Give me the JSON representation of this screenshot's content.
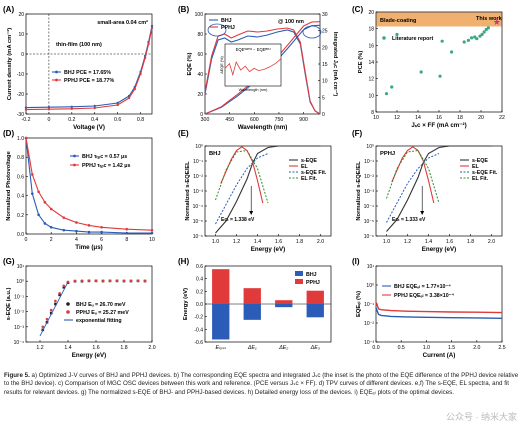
{
  "colors": {
    "bhj": "#2a5cb8",
    "pphj": "#e03a3a",
    "fit_green": "#2e8b2e",
    "gray": "#555555",
    "orange": "#f0b070"
  },
  "panels": [
    {
      "id": "A",
      "label": "(A)",
      "annotations": [
        "small-area  0.04 cm²",
        "thin-film (100 nm)"
      ],
      "legend": [
        "BHJ     PCE = 17.65%",
        "PPHJ    PCE = 18.77%"
      ],
      "chart_data": {
        "type": "line",
        "xlabel": "Voltage (V)",
        "ylabel": "Current density (mA cm⁻²)",
        "xlim": [
          -0.2,
          0.9
        ],
        "ylim": [
          -30,
          20
        ],
        "xticks": [
          -0.2,
          0.0,
          0.2,
          0.4,
          0.6,
          0.8
        ],
        "yticks": [
          -30,
          -20,
          -10,
          0,
          10,
          20
        ],
        "series": [
          {
            "name": "BHJ",
            "x": [
              -0.2,
              0,
              0.2,
              0.4,
              0.6,
              0.7,
              0.75,
              0.8,
              0.84,
              0.87,
              0.9
            ],
            "y": [
              -26.8,
              -26.6,
              -26.4,
              -26.0,
              -24.5,
              -21.0,
              -16.5,
              -9.0,
              -1.0,
              6.0,
              14.0
            ]
          },
          {
            "name": "PPHJ",
            "x": [
              -0.2,
              0,
              0.2,
              0.4,
              0.6,
              0.7,
              0.75,
              0.8,
              0.84,
              0.87,
              0.9
            ],
            "y": [
              -27.8,
              -27.6,
              -27.4,
              -27.0,
              -25.5,
              -22.0,
              -17.5,
              -10.0,
              -2.0,
              5.0,
              13.0
            ]
          }
        ]
      }
    },
    {
      "id": "B",
      "label": "(B)",
      "annotations": [
        "@ 100 nm",
        "EQEᵂᴾᴴᴶ − EQEᴮᴴᴶ"
      ],
      "legend": [
        "BHJ",
        "PPHJ"
      ],
      "inset": {
        "xlabel": "Wavelength (nm)",
        "ylabel": "ΔEQE (%)"
      },
      "chart_data": {
        "type": "line",
        "xlabel": "Wavelength (nm)",
        "ylabel": "EQE (%)",
        "y2label": "Integrated Jₛᴄ (mA cm⁻²)",
        "xlim": [
          300,
          1000
        ],
        "ylim": [
          0,
          100
        ],
        "y2lim": [
          0,
          30
        ],
        "xticks": [
          300,
          450,
          600,
          750,
          900
        ],
        "yticks": [
          0,
          20,
          40,
          60,
          80,
          100
        ],
        "y2ticks": [
          0,
          5,
          10,
          15,
          20,
          25,
          30
        ],
        "series": [
          {
            "name": "BHJ",
            "x": [
              300,
              340,
              380,
              420,
              460,
              500,
              560,
              620,
              680,
              740,
              800,
              840,
              880,
              910,
              940,
              970,
              1000
            ],
            "y": [
              20,
              55,
              74,
              76,
              72,
              74,
              78,
              77,
              79,
              82,
              84,
              82,
              70,
              40,
              12,
              3,
              0
            ]
          },
          {
            "name": "PPHJ",
            "x": [
              300,
              340,
              380,
              420,
              460,
              500,
              560,
              620,
              680,
              740,
              800,
              840,
              880,
              910,
              940,
              970,
              1000
            ],
            "y": [
              22,
              58,
              78,
              80,
              76,
              79,
              83,
              82,
              83,
              85,
              86,
              84,
              72,
              42,
              13,
              3,
              0
            ]
          },
          {
            "name": "BHJ integrated",
            "axis": "y2",
            "x": [
              300,
              400,
              500,
              600,
              700,
              800,
              900,
              950,
              1000
            ],
            "y": [
              0,
              2.0,
              5.5,
              9.5,
              14.0,
              19.5,
              25.3,
              26.5,
              26.6
            ]
          },
          {
            "name": "PPHJ integrated",
            "axis": "y2",
            "x": [
              300,
              400,
              500,
              600,
              700,
              800,
              900,
              950,
              1000
            ],
            "y": [
              0,
              2.2,
              6.0,
              10.0,
              14.8,
              20.5,
              26.4,
              27.6,
              27.7
            ]
          }
        ]
      }
    },
    {
      "id": "C",
      "label": "(C)",
      "annotations": [
        "Blade-coating",
        "This work"
      ],
      "legend": [
        "Literature report"
      ],
      "chart_data": {
        "type": "scatter",
        "xlabel": "Jₛᴄ × FF (mA cm⁻²)",
        "ylabel": "PCE (%)",
        "xlim": [
          10,
          22
        ],
        "ylim": [
          8,
          20
        ],
        "xticks": [
          10,
          12,
          14,
          16,
          18,
          20,
          22
        ],
        "yticks": [
          8,
          10,
          12,
          14,
          16,
          18,
          20
        ],
        "series": [
          {
            "name": "Literature report",
            "x": [
              11.0,
              11.5,
              12.0,
              14.3,
              16.1,
              16.3,
              17.2,
              18.4,
              18.8,
              19.1,
              19.4,
              19.6,
              19.9,
              20.1,
              20.3,
              20.5,
              20.7
            ],
            "y": [
              10.2,
              11.0,
              17.3,
              12.8,
              12.3,
              16.5,
              15.2,
              16.4,
              16.6,
              16.9,
              17.0,
              16.8,
              17.1,
              17.3,
              17.6,
              17.9,
              18.1
            ]
          },
          {
            "name": "This work",
            "x": [
              21.5
            ],
            "y": [
              18.8
            ]
          }
        ]
      }
    },
    {
      "id": "D",
      "label": "(D)",
      "legend": [
        "BHJ   τₜₚᴄ = 0.57 μs",
        "PPHJ  τₜₚᴄ = 1.42 μs"
      ],
      "chart_data": {
        "type": "line",
        "xlabel": "Time (μs)",
        "ylabel": "Normalized Photovoltage",
        "xlim": [
          0,
          10
        ],
        "ylim": [
          0,
          1
        ],
        "xticks": [
          0,
          2,
          4,
          6,
          8,
          10
        ],
        "yticks": [
          0,
          0.2,
          0.4,
          0.6,
          0.8,
          1.0
        ],
        "series": [
          {
            "name": "BHJ",
            "x": [
              0,
              0.5,
              1,
              1.5,
              2,
              3,
              4,
              5,
              6,
              8,
              10
            ],
            "y": [
              1.0,
              0.42,
              0.2,
              0.11,
              0.07,
              0.04,
              0.03,
              0.02,
              0.02,
              0.01,
              0.01
            ]
          },
          {
            "name": "PPHJ",
            "x": [
              0,
              0.5,
              1,
              1.5,
              2,
              3,
              4,
              5,
              6,
              8,
              10
            ],
            "y": [
              1.0,
              0.62,
              0.44,
              0.33,
              0.26,
              0.17,
              0.12,
              0.09,
              0.07,
              0.05,
              0.04
            ]
          }
        ]
      }
    },
    {
      "id": "E",
      "label": "(E)",
      "title": "BHJ",
      "legend": [
        "s-EQE",
        "EL",
        "s-EQE Fit.",
        "EL Fit."
      ],
      "annotations": [
        "Eᴄₜ = 1.338 eV"
      ],
      "chart_data": {
        "type": "line",
        "xlabel": "Energy (eV)",
        "ylabel": "Normalized s-EQE/EL",
        "xlim": [
          0.9,
          2.1
        ],
        "ylim_log": [
          -6,
          0
        ],
        "xticks": [
          1.0,
          1.2,
          1.4,
          1.6,
          1.8,
          2.0
        ],
        "yticks_log": [
          -6,
          -5,
          -4,
          -3,
          -2,
          -1,
          0
        ],
        "series": [
          {
            "name": "s-EQE",
            "x": [
              1.0,
              1.1,
              1.2,
              1.3,
              1.35,
              1.4,
              1.5,
              1.6,
              1.8,
              2.0
            ],
            "log10y": [
              -5.8,
              -5.0,
              -3.7,
              -2.2,
              -1.2,
              -0.5,
              -0.1,
              0,
              0,
              0
            ]
          },
          {
            "name": "EL",
            "x": [
              1.05,
              1.15,
              1.2,
              1.25,
              1.3,
              1.35,
              1.4,
              1.45
            ],
            "log10y": [
              -2.5,
              -0.9,
              -0.3,
              -0.05,
              -0.3,
              -1.0,
              -2.3,
              -3.8
            ]
          },
          {
            "name": "s-EQE Fit.",
            "x": [
              1.0,
              1.1,
              1.2,
              1.3,
              1.4,
              1.5
            ],
            "log10y": [
              -5.2,
              -3.9,
              -2.6,
              -1.5,
              -0.8,
              -0.5
            ]
          },
          {
            "name": "EL Fit.",
            "x": [
              1.0,
              1.1,
              1.2,
              1.3,
              1.4,
              1.5
            ],
            "log10y": [
              -3.6,
              -1.6,
              -0.4,
              -0.3,
              -1.5,
              -3.8
            ]
          }
        ]
      }
    },
    {
      "id": "F",
      "label": "(F)",
      "title": "PPHJ",
      "legend": [
        "s-EQE",
        "EL",
        "s-EQE Fit.",
        "EL Fit."
      ],
      "annotations": [
        "Eᴄₜ = 1.333 eV"
      ],
      "chart_data": {
        "type": "line",
        "xlabel": "Energy (eV)",
        "ylabel": "Normalized s-EQE/EL",
        "xlim": [
          0.9,
          2.1
        ],
        "ylim_log": [
          -6,
          0
        ],
        "xticks": [
          1.0,
          1.2,
          1.4,
          1.6,
          1.8,
          2.0
        ],
        "yticks_log": [
          -6,
          -5,
          -4,
          -3,
          -2,
          -1,
          0
        ],
        "series": [
          {
            "name": "s-EQE",
            "x": [
              1.0,
              1.1,
              1.2,
              1.3,
              1.35,
              1.4,
              1.5,
              1.6,
              1.8,
              2.0
            ],
            "log10y": [
              -5.7,
              -4.9,
              -3.6,
              -2.1,
              -1.1,
              -0.5,
              -0.1,
              0,
              0,
              0
            ]
          },
          {
            "name": "EL",
            "x": [
              1.05,
              1.15,
              1.2,
              1.25,
              1.3,
              1.35,
              1.4,
              1.45
            ],
            "log10y": [
              -2.4,
              -0.8,
              -0.3,
              -0.05,
              -0.3,
              -1.0,
              -2.3,
              -3.8
            ]
          },
          {
            "name": "s-EQE Fit.",
            "x": [
              1.0,
              1.1,
              1.2,
              1.3,
              1.4,
              1.5
            ],
            "log10y": [
              -5.1,
              -3.8,
              -2.5,
              -1.5,
              -0.8,
              -0.5
            ]
          },
          {
            "name": "EL Fit.",
            "x": [
              1.0,
              1.1,
              1.2,
              1.3,
              1.4,
              1.5
            ],
            "log10y": [
              -3.5,
              -1.5,
              -0.4,
              -0.3,
              -1.5,
              -3.8
            ]
          }
        ]
      }
    },
    {
      "id": "G",
      "label": "(G)",
      "legend": [
        "BHJ     Eᵤ = 26.70 meV",
        "PPHJ    Eᵤ = 25.27 meV",
        "exponential  fitting"
      ],
      "chart_data": {
        "type": "scatter",
        "xlabel": "Energy (eV)",
        "ylabel": "s-EQE (a.u.)",
        "xlim": [
          1.1,
          2.0
        ],
        "ylim_log": [
          -4,
          1
        ],
        "xticks": [
          1.2,
          1.4,
          1.6,
          1.8,
          2.0
        ],
        "yticks_log": [
          -4,
          -3,
          -2,
          -1,
          0,
          1
        ],
        "series": [
          {
            "name": "BHJ",
            "x": [
              1.22,
              1.25,
              1.28,
              1.31,
              1.34,
              1.37,
              1.4,
              1.45,
              1.5,
              1.55,
              1.6,
              1.65,
              1.7,
              1.75,
              1.8,
              1.85,
              1.9,
              1.95
            ],
            "log10y": [
              -3.2,
              -2.7,
              -2.1,
              -1.5,
              -0.9,
              -0.4,
              -0.1,
              0,
              0,
              0.02,
              0.02,
              0.01,
              0.02,
              0.02,
              0.01,
              0.01,
              0.02,
              0.01
            ]
          },
          {
            "name": "PPHJ",
            "x": [
              1.22,
              1.25,
              1.28,
              1.31,
              1.34,
              1.37,
              1.4,
              1.45,
              1.5,
              1.55,
              1.6,
              1.65,
              1.7,
              1.75,
              1.8,
              1.85,
              1.9,
              1.95
            ],
            "log10y": [
              -3.0,
              -2.5,
              -1.9,
              -1.3,
              -0.8,
              -0.3,
              -0.05,
              0.02,
              0.03,
              0.03,
              0.03,
              0.02,
              0.03,
              0.03,
              0.02,
              0.02,
              0.03,
              0.02
            ]
          }
        ]
      }
    },
    {
      "id": "H",
      "label": "(H)",
      "legend": [
        "BHJ",
        "PPHJ"
      ],
      "chart_data": {
        "type": "bar",
        "xlabel": "",
        "ylabel": "Energy (eV)",
        "categories": [
          "Eₗₒₛₛ",
          "ΔE₁",
          "ΔE₂",
          "ΔE₃"
        ],
        "ylim": [
          -0.6,
          0.6
        ],
        "yticks": [
          -0.6,
          -0.4,
          -0.2,
          0.0,
          0.2,
          0.4,
          0.6
        ],
        "series": [
          {
            "name": "BHJ",
            "values": [
              -0.56,
              -0.25,
              -0.05,
              -0.21
            ]
          },
          {
            "name": "PPHJ",
            "values": [
              0.55,
              0.25,
              0.06,
              0.21
            ]
          }
        ]
      }
    },
    {
      "id": "I",
      "label": "(I)",
      "legend": [
        "BHJ     EQEₑₗ = 1.77×10⁻⁴",
        "PPHJ    EQEₑₗ = 3.38×10⁻⁴"
      ],
      "chart_data": {
        "type": "line",
        "xlabel": "Current (A)",
        "ylabel": "EQEₑₗ (%)",
        "xlim": [
          0,
          2.5
        ],
        "ylim_log": [
          -3,
          1
        ],
        "xticks": [
          0,
          0.5,
          1.0,
          1.5,
          2.0,
          2.5
        ],
        "yticks_log": [
          -3,
          -2,
          -1,
          0,
          1
        ],
        "series": [
          {
            "name": "BHJ",
            "x": [
              0,
              0.05,
              0.1,
              0.3,
              0.6,
              1.0,
              1.5,
              2.0,
              2.5
            ],
            "log10y": [
              -1.2,
              -1.55,
              -1.6,
              -1.65,
              -1.68,
              -1.7,
              -1.72,
              -1.73,
              -1.75
            ]
          },
          {
            "name": "PPHJ",
            "x": [
              0,
              0.05,
              0.1,
              0.3,
              0.6,
              1.0,
              1.5,
              2.0,
              2.5
            ],
            "log10y": [
              -0.9,
              -1.25,
              -1.3,
              -1.35,
              -1.38,
              -1.4,
              -1.42,
              -1.43,
              -1.45
            ]
          }
        ]
      }
    }
  ],
  "caption": {
    "lead": "Figure 5.",
    "text": " a) Optimized J-V curves of BHJ and PPHJ devices. b) The corresponding EQE spectra and integrated Jₛᴄ (the inset is the photo of the EQE difference of the PPHJ device relative to the BHJ device). c) Comparison of MGC OSC devices between this work and reference. (PCE versus Jₛᴄ × FF). d) TPV curves of different devices. e,f) The s-EQE, EL spectra, and fit results for relevant devices. g) The normalized s-EQE of BHJ- and PPHJ-based devices. h) Detailed energy loss of the devices. i) EQEₑₗ plots of the optimal devices."
  },
  "watermark": "公众号 · 纳米大家"
}
